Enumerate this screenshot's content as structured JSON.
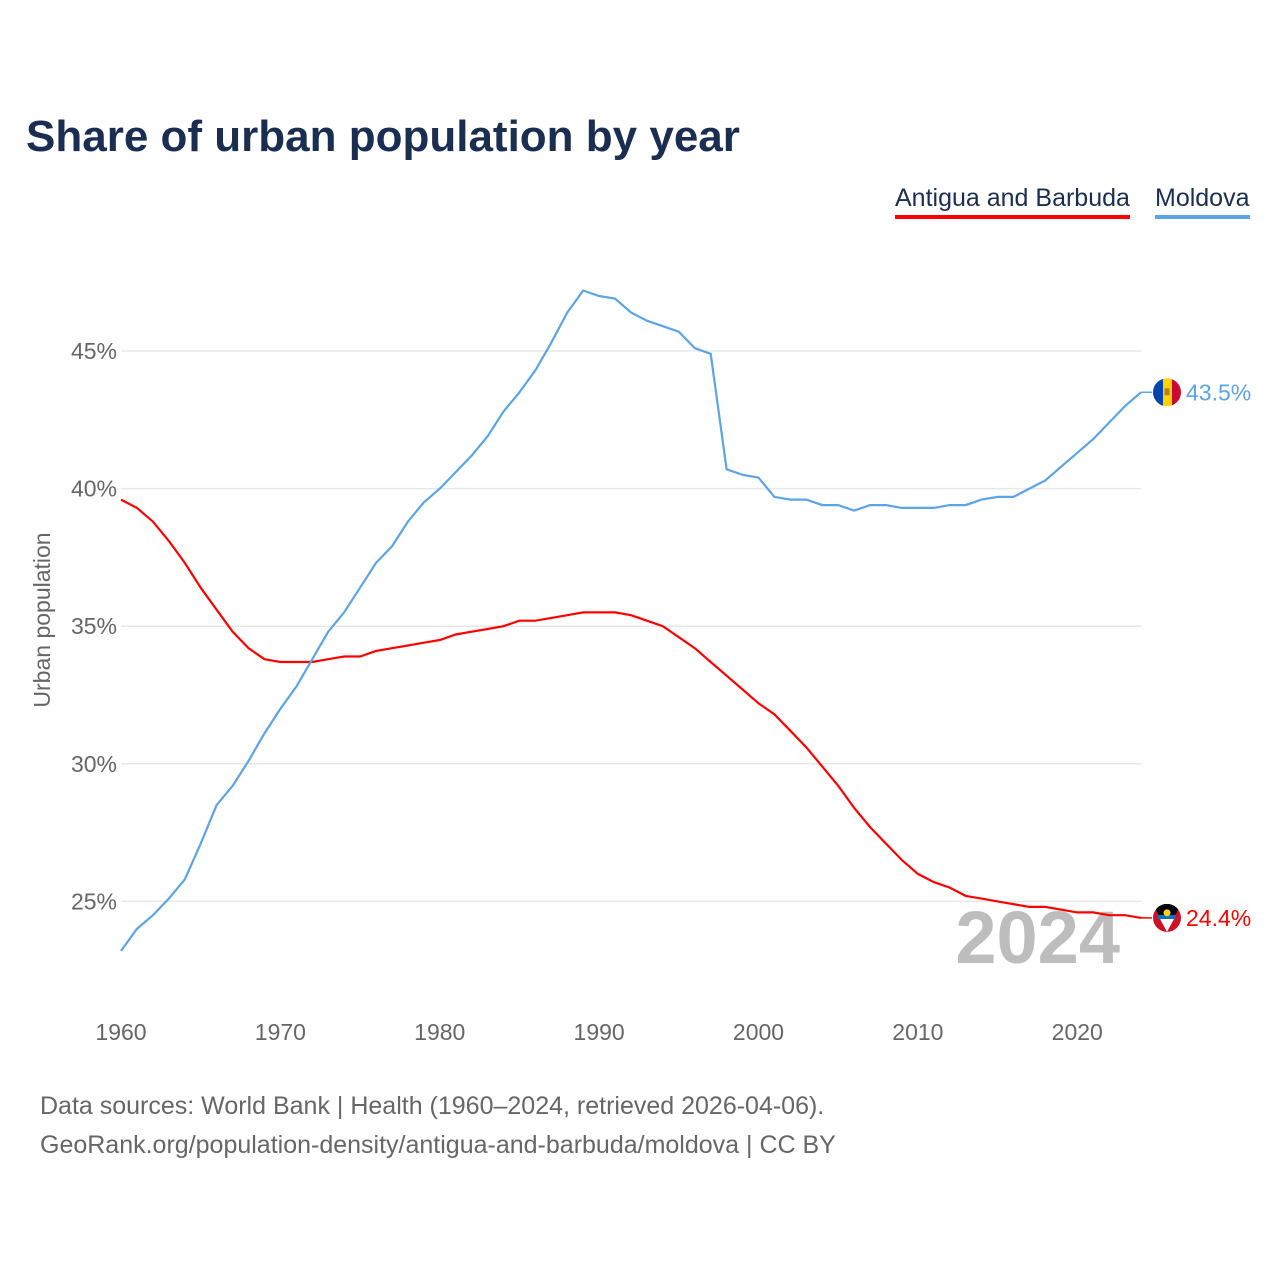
{
  "chart_data": {
    "type": "line",
    "title": "Share of urban population by year",
    "xlabel": "",
    "ylabel": "Urban population",
    "xlim": [
      1960,
      2024
    ],
    "ylim": [
      22.5,
      47.5
    ],
    "yticks": [
      25,
      30,
      35,
      40,
      45
    ],
    "ytick_labels": [
      "25%",
      "30%",
      "35%",
      "40%",
      "45%"
    ],
    "xticks": [
      1960,
      1970,
      1980,
      1990,
      2000,
      2010,
      2020
    ],
    "xtick_labels": [
      "1960",
      "1970",
      "1980",
      "1990",
      "2000",
      "2010",
      "2020"
    ],
    "grid": true,
    "legend_position": "top-right",
    "year_watermark": "2024",
    "x_start": 1960,
    "series": [
      {
        "name": "Antigua and Barbuda",
        "color": "#ff0000",
        "end_label": "24.4%",
        "flag": "antigua-flag",
        "values": [
          39.6,
          39.3,
          38.8,
          38.1,
          37.3,
          36.4,
          35.6,
          34.8,
          34.2,
          33.8,
          33.7,
          33.7,
          33.7,
          33.8,
          33.9,
          33.9,
          34.1,
          34.2,
          34.3,
          34.4,
          34.5,
          34.7,
          34.8,
          34.9,
          35.0,
          35.2,
          35.2,
          35.3,
          35.4,
          35.5,
          35.5,
          35.5,
          35.4,
          35.2,
          35.0,
          34.6,
          34.2,
          33.7,
          33.2,
          32.7,
          32.2,
          31.8,
          31.2,
          30.6,
          29.9,
          29.2,
          28.4,
          27.7,
          27.1,
          26.5,
          26.0,
          25.7,
          25.5,
          25.2,
          25.1,
          25.0,
          24.9,
          24.8,
          24.8,
          24.7,
          24.6,
          24.6,
          24.5,
          24.5,
          24.4
        ]
      },
      {
        "name": "Moldova",
        "color": "#5ba4e6",
        "end_label": "43.5%",
        "flag": "moldova-flag",
        "values": [
          23.2,
          24.0,
          24.5,
          25.1,
          25.8,
          27.1,
          28.5,
          29.2,
          30.1,
          31.1,
          32.0,
          32.8,
          33.8,
          34.8,
          35.5,
          36.4,
          37.3,
          37.9,
          38.8,
          39.5,
          40.0,
          40.6,
          41.2,
          41.9,
          42.8,
          43.5,
          44.3,
          45.3,
          46.4,
          47.2,
          47.0,
          46.9,
          46.4,
          46.1,
          45.9,
          45.7,
          45.1,
          44.9,
          40.7,
          40.5,
          40.4,
          39.7,
          39.6,
          39.6,
          39.4,
          39.4,
          39.2,
          39.4,
          39.4,
          39.3,
          39.3,
          39.3,
          39.4,
          39.4,
          39.6,
          39.7,
          39.7,
          40.0,
          40.3,
          40.8,
          41.3,
          41.8,
          42.4,
          43.0,
          43.5
        ]
      }
    ]
  },
  "footer": {
    "line1": "Data sources: World Bank | Health (1960–2024, retrieved 2026-04-06).",
    "line2": "GeoRank.org/population-density/antigua-and-barbuda/moldova | CC BY"
  }
}
